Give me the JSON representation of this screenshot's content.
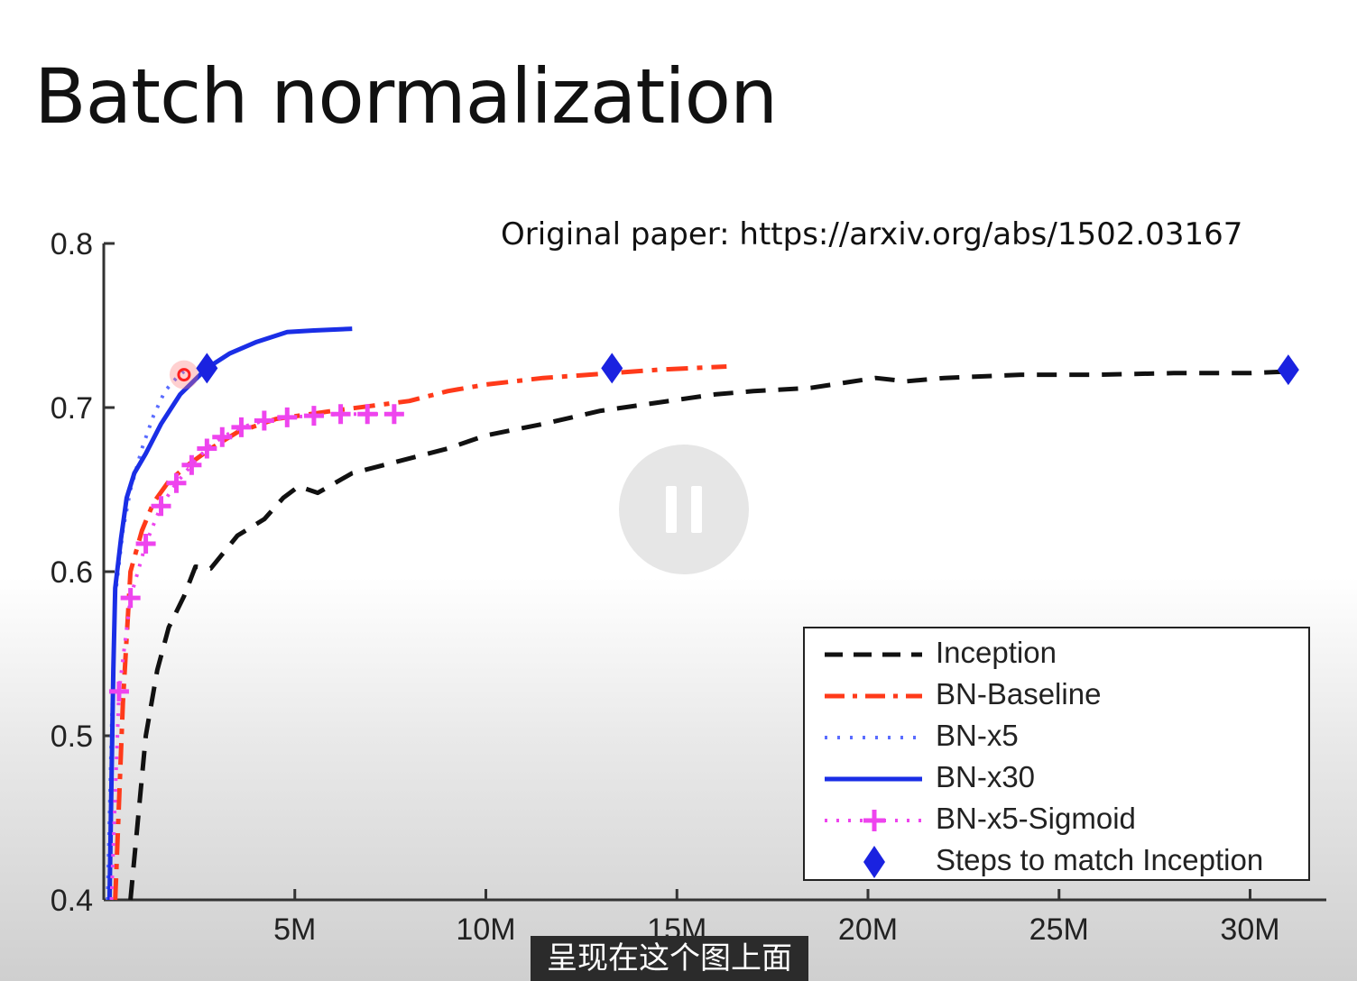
{
  "slide": {
    "title": "Batch normalization",
    "source_note": "Original paper: https://arxiv.org/abs/1502.03167"
  },
  "player": {
    "subtitle": "呈现在这个图上面",
    "overlay_icon": "pause-icon"
  },
  "colors": {
    "inception": "#111111",
    "bn_baseline": "#ff3a1a",
    "bn_x5": "#5a6cff",
    "bn_x30": "#1a2ee6",
    "bn_x5_sigmoid": "#ee44ee",
    "match_marker": "#1a22e0"
  },
  "chart_data": {
    "type": "line",
    "title": "",
    "xlabel": "",
    "ylabel": "",
    "xlim": [
      0,
      32000000
    ],
    "ylim": [
      0.4,
      0.8
    ],
    "x_ticks": [
      5000000,
      10000000,
      15000000,
      20000000,
      25000000,
      30000000
    ],
    "x_tick_labels": [
      "5M",
      "10M",
      "15M",
      "20M",
      "25M",
      "30M"
    ],
    "y_ticks": [
      0.4,
      0.5,
      0.6,
      0.7,
      0.8
    ],
    "y_tick_labels": [
      "0.4",
      "0.5",
      "0.6",
      "0.7",
      "0.8"
    ],
    "grid": false,
    "legend_position": "bottom-right",
    "series": [
      {
        "name": "Inception",
        "style": "dashed",
        "color": "#111111",
        "x": [
          700000,
          900000,
          1100000,
          1400000,
          1700000,
          2100000,
          2400000,
          2800000,
          3500000,
          4200000,
          4700000,
          5100000,
          5600000,
          6500000,
          7500000,
          9000000,
          10000000,
          11500000,
          13000000,
          14500000,
          16000000,
          17000000,
          18500000,
          20200000,
          21000000,
          22000000,
          24000000,
          26000000,
          28000000,
          30000000,
          31000000
        ],
        "y": [
          0.4,
          0.45,
          0.5,
          0.54,
          0.566,
          0.585,
          0.603,
          0.602,
          0.622,
          0.632,
          0.645,
          0.652,
          0.648,
          0.66,
          0.666,
          0.675,
          0.683,
          0.69,
          0.698,
          0.703,
          0.708,
          0.71,
          0.712,
          0.718,
          0.716,
          0.718,
          0.72,
          0.72,
          0.721,
          0.721,
          0.722
        ]
      },
      {
        "name": "BN-Baseline",
        "style": "dashdot",
        "color": "#ff3a1a",
        "x": [
          300000,
          500000,
          700000,
          1000000,
          1300000,
          1700000,
          2200000,
          2800000,
          3500000,
          4500000,
          6000000,
          7000000,
          8000000,
          9000000,
          10000000,
          11500000,
          13300000,
          14500000,
          16300000
        ],
        "y": [
          0.4,
          0.52,
          0.6,
          0.625,
          0.642,
          0.655,
          0.665,
          0.675,
          0.685,
          0.693,
          0.698,
          0.701,
          0.704,
          0.71,
          0.714,
          0.718,
          0.721,
          0.723,
          0.725
        ]
      },
      {
        "name": "BN-x5",
        "style": "dotted",
        "color": "#5a6cff",
        "x": [
          100000,
          200000,
          300000,
          500000,
          700000,
          1000000,
          1300000,
          1600000,
          1900000,
          2100000
        ],
        "y": [
          0.4,
          0.5,
          0.585,
          0.625,
          0.65,
          0.675,
          0.695,
          0.71,
          0.718,
          0.722
        ]
      },
      {
        "name": "BN-x30",
        "style": "solid",
        "color": "#1a2ee6",
        "x": [
          150000,
          250000,
          300000,
          450000,
          600000,
          800000,
          1100000,
          1500000,
          2000000,
          2700000,
          3300000,
          4000000,
          4800000,
          5500000,
          6500000
        ],
        "y": [
          0.4,
          0.54,
          0.59,
          0.62,
          0.645,
          0.66,
          0.672,
          0.69,
          0.708,
          0.724,
          0.733,
          0.74,
          0.746,
          0.747,
          0.748
        ]
      },
      {
        "name": "BN-x5-Sigmoid",
        "style": "dotted-plus",
        "color": "#ee44ee",
        "x": [
          200000,
          400000,
          700000,
          1100000,
          1500000,
          1900000,
          2300000,
          2700000,
          3100000,
          3600000,
          4200000,
          4800000,
          5500000,
          6200000,
          6900000,
          7600000
        ],
        "y": [
          0.4,
          0.527,
          0.584,
          0.617,
          0.64,
          0.654,
          0.665,
          0.675,
          0.682,
          0.688,
          0.692,
          0.694,
          0.695,
          0.696,
          0.696,
          0.696
        ]
      }
    ],
    "markers": {
      "name": "Steps to match Inception",
      "shape": "diamond",
      "color": "#1a22e0",
      "x": [
        2700000,
        13300000,
        31000000
      ],
      "y": [
        0.724,
        0.724,
        0.723
      ]
    },
    "highlight": {
      "x": 2100000,
      "y": 0.72
    }
  }
}
